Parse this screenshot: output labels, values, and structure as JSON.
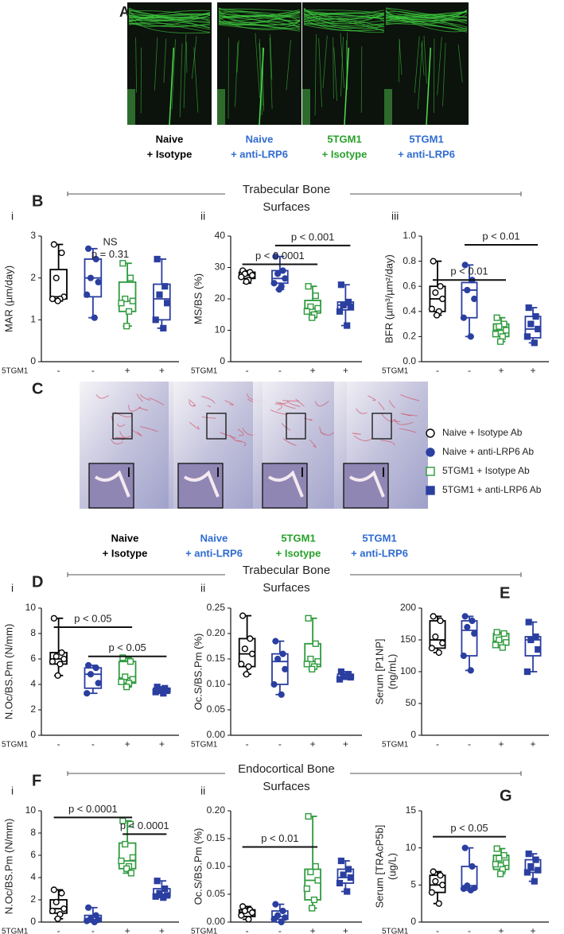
{
  "panel_a": {
    "letter": "A",
    "labels": [
      {
        "lines": [
          "Naive",
          "+ Isotype"
        ],
        "color": "#000000"
      },
      {
        "lines": [
          "Naive",
          "+ anti-LRP6"
        ],
        "color": "#2f6bd0"
      },
      {
        "lines": [
          "5TGM1",
          "+ Isotype"
        ],
        "color": "#28a02a"
      },
      {
        "lines": [
          "5TGM1",
          "+ anti-LRP6"
        ],
        "color": "#2f6bd0"
      }
    ]
  },
  "panel_c": {
    "letter": "C",
    "labels": [
      {
        "lines": [
          "Naive",
          "+ Isotype"
        ],
        "color": "#000000"
      },
      {
        "lines": [
          "Naive",
          "+ anti-LRP6"
        ],
        "color": "#2f6bd0"
      },
      {
        "lines": [
          "5TGM1",
          "+ Isotype"
        ],
        "color": "#28a02a"
      },
      {
        "lines": [
          "5TGM1",
          "+ anti-LRP6"
        ],
        "color": "#2f6bd0"
      }
    ],
    "legend": [
      "Naive + Isotype Ab",
      "Naive + anti-LRP6 Ab",
      "5TGM1 + Isotype Ab",
      "5TGM1 + anti-LRP6 Ab"
    ]
  },
  "sections": [
    {
      "letter": "B",
      "title": [
        "Trabecular Bone",
        "Surfaces"
      ]
    },
    {
      "letter": "D",
      "title": [
        "Trabecular Bone",
        "Surfaces"
      ]
    },
    {
      "letter": "F",
      "title": [
        "Endocortical Bone",
        "Surfaces"
      ]
    }
  ],
  "group_styles": [
    {
      "color": "#000000",
      "marker": "open-circle"
    },
    {
      "color": "#2b3fa0",
      "marker": "filled-circle"
    },
    {
      "color": "#2e9a3c",
      "marker": "open-square"
    },
    {
      "color": "#2b3fa0",
      "marker": "filled-square"
    }
  ],
  "chart_data": [
    {
      "type": "box",
      "sub": "i",
      "ylabel": [
        "MAR (µm/day)"
      ],
      "row_label": "5TGM1",
      "categories": [
        "-",
        "-",
        "+",
        "+"
      ],
      "ylim": [
        0,
        3
      ],
      "yticks": [
        0,
        1,
        2,
        3
      ],
      "notes": [
        {
          "text": "NS",
          "y": 2.85
        },
        {
          "text": "p = 0.31",
          "y": 2.55
        }
      ],
      "brackets": [],
      "series": [
        {
          "min": 1.45,
          "q1": 1.5,
          "median": 1.55,
          "q3": 2.2,
          "max": 2.8,
          "points": [
            2.8,
            2.6,
            2.0,
            1.55,
            1.5,
            1.5,
            1.45
          ]
        },
        {
          "min": 1.05,
          "q1": 1.55,
          "median": 2.0,
          "q3": 2.45,
          "max": 2.7,
          "points": [
            2.7,
            2.45,
            2.0,
            1.9,
            1.6,
            1.05
          ]
        },
        {
          "min": 0.85,
          "q1": 1.2,
          "median": 1.45,
          "q3": 1.9,
          "max": 2.35,
          "points": [
            2.35,
            2.0,
            1.5,
            1.45,
            1.4,
            1.2,
            0.85
          ]
        },
        {
          "min": 0.8,
          "q1": 1.0,
          "median": 1.5,
          "q3": 1.85,
          "max": 2.45,
          "points": [
            2.45,
            1.8,
            1.6,
            1.4,
            1.0,
            0.8
          ]
        }
      ]
    },
    {
      "type": "box",
      "sub": "ii",
      "ylabel": [
        "MS/BS (%)"
      ],
      "row_label": "5TGM1",
      "categories": [
        "-",
        "-",
        "+",
        "+"
      ],
      "ylim": [
        0,
        40
      ],
      "yticks": [
        0,
        10,
        20,
        30,
        40
      ],
      "notes": [],
      "brackets": [
        {
          "text": "p < 0.0001",
          "y": 31,
          "from": 0,
          "to": 2
        },
        {
          "text": "p < 0.001",
          "y": 37,
          "from": 1,
          "to": 3
        }
      ],
      "series": [
        {
          "min": 25,
          "q1": 26.5,
          "median": 27.5,
          "q3": 28.5,
          "max": 29,
          "points": [
            29,
            28.5,
            28,
            27.5,
            27,
            26,
            25.5
          ]
        },
        {
          "min": 23,
          "q1": 25,
          "median": 26.5,
          "q3": 29,
          "max": 33.5,
          "points": [
            33.5,
            29,
            28,
            26.5,
            25,
            24,
            23
          ]
        },
        {
          "min": 14,
          "q1": 15.5,
          "median": 17,
          "q3": 19.5,
          "max": 24,
          "points": [
            24,
            21,
            17.5,
            17,
            16,
            15,
            14
          ]
        },
        {
          "min": 11.5,
          "q1": 16.5,
          "median": 18,
          "q3": 19,
          "max": 24.5,
          "points": [
            24.5,
            19,
            18,
            17.5,
            16,
            11.5
          ]
        }
      ]
    },
    {
      "type": "box",
      "sub": "iii",
      "ylabel": [
        "BFR (µm³/µm²/day)"
      ],
      "row_label": "5TGM1",
      "categories": [
        "-",
        "-",
        "+",
        "+"
      ],
      "ylim": [
        0,
        1
      ],
      "yticks": [
        {
          "value": 0,
          "label": "0.0"
        },
        0.2,
        0.4,
        0.6,
        0.8,
        {
          "value": 1,
          "label": "1.0"
        }
      ],
      "notes": [],
      "brackets": [
        {
          "text": "p < 0.01",
          "y": 0.65,
          "from": 0,
          "to": 2
        },
        {
          "text": "p < 0.01",
          "y": 0.93,
          "from": 1,
          "to": 3
        }
      ],
      "series": [
        {
          "min": 0.37,
          "q1": 0.4,
          "median": 0.5,
          "q3": 0.6,
          "max": 0.8,
          "points": [
            0.8,
            0.6,
            0.55,
            0.5,
            0.42,
            0.4,
            0.37
          ]
        },
        {
          "min": 0.2,
          "q1": 0.35,
          "median": 0.57,
          "q3": 0.63,
          "max": 0.77,
          "points": [
            0.77,
            0.65,
            0.57,
            0.5,
            0.35,
            0.2
          ]
        },
        {
          "min": 0.16,
          "q1": 0.2,
          "median": 0.25,
          "q3": 0.3,
          "max": 0.35,
          "points": [
            0.35,
            0.3,
            0.28,
            0.25,
            0.22,
            0.2,
            0.16
          ]
        },
        {
          "min": 0.15,
          "q1": 0.19,
          "median": 0.26,
          "q3": 0.36,
          "max": 0.43,
          "points": [
            0.43,
            0.36,
            0.3,
            0.26,
            0.2,
            0.15
          ]
        }
      ]
    },
    {
      "type": "box",
      "sub": "i",
      "ylabel": [
        "N.Oc/BS.Pm (N/mm)"
      ],
      "row_label": "5TGM1",
      "categories": [
        "-",
        "-",
        "+",
        "+"
      ],
      "ylim": [
        0,
        10
      ],
      "yticks": [
        0,
        2,
        4,
        6,
        8,
        10
      ],
      "notes": [],
      "brackets": [
        {
          "text": "p < 0.05",
          "y": 8.5,
          "from": 0,
          "to": 2
        },
        {
          "text": "p < 0.05",
          "y": 6.2,
          "from": 1,
          "to": 3
        }
      ],
      "series": [
        {
          "min": 4.7,
          "q1": 5.6,
          "median": 6.0,
          "q3": 6.5,
          "max": 9.2,
          "points": [
            9.2,
            6.5,
            6.2,
            6.0,
            5.8,
            5.6,
            4.7
          ]
        },
        {
          "min": 3.3,
          "q1": 3.7,
          "median": 4.8,
          "q3": 5.3,
          "max": 5.5,
          "points": [
            5.5,
            5.3,
            4.8,
            4.1,
            3.3
          ]
        },
        {
          "min": 3.8,
          "q1": 4.1,
          "median": 4.5,
          "q3": 5.8,
          "max": 6.1,
          "points": [
            6.1,
            5.8,
            4.6,
            4.4,
            4.2,
            4.1,
            3.8
          ]
        },
        {
          "min": 3.3,
          "q1": 3.4,
          "median": 3.6,
          "q3": 3.7,
          "max": 3.8,
          "points": [
            3.8,
            3.7,
            3.6,
            3.5,
            3.4,
            3.3
          ]
        }
      ]
    },
    {
      "type": "box",
      "sub": "ii",
      "ylabel": [
        "Oc.S/BS.Pm (%)"
      ],
      "row_label": "5TGM1",
      "categories": [
        "-",
        "-",
        "+",
        "+"
      ],
      "ylim": [
        0,
        0.25
      ],
      "yticks": [
        {
          "value": 0,
          "label": "0.00"
        },
        0.05,
        {
          "value": 0.1,
          "label": "0.10"
        },
        0.15,
        {
          "value": 0.2,
          "label": "0.20"
        },
        0.25
      ],
      "notes": [],
      "brackets": [],
      "series": [
        {
          "min": 0.12,
          "q1": 0.135,
          "median": 0.16,
          "q3": 0.19,
          "max": 0.235,
          "points": [
            0.235,
            0.19,
            0.17,
            0.16,
            0.14,
            0.135,
            0.12
          ]
        },
        {
          "min": 0.08,
          "q1": 0.1,
          "median": 0.145,
          "q3": 0.16,
          "max": 0.185,
          "points": [
            0.185,
            0.16,
            0.15,
            0.13,
            0.1,
            0.08
          ]
        },
        {
          "min": 0.13,
          "q1": 0.135,
          "median": 0.145,
          "q3": 0.18,
          "max": 0.23,
          "points": [
            0.23,
            0.18,
            0.15,
            0.145,
            0.14,
            0.135,
            0.13
          ]
        },
        {
          "min": 0.11,
          "q1": 0.112,
          "median": 0.115,
          "q3": 0.12,
          "max": 0.125,
          "points": [
            0.125,
            0.12,
            0.116,
            0.114,
            0.11
          ]
        }
      ]
    },
    {
      "type": "box",
      "letter": "E",
      "ylabel": [
        "Serum [P1NP]",
        "(ng/mL)"
      ],
      "row_label": "5TGM1",
      "categories": [
        "-",
        "-",
        "+",
        "+"
      ],
      "ylim": [
        0,
        200
      ],
      "yticks": [
        0,
        50,
        100,
        150,
        200
      ],
      "notes": [],
      "brackets": [],
      "series": [
        {
          "min": 130,
          "q1": 137,
          "median": 150,
          "q3": 180,
          "max": 187,
          "points": [
            187,
            180,
            155,
            145,
            137,
            130
          ]
        },
        {
          "min": 102,
          "q1": 125,
          "median": 165,
          "q3": 180,
          "max": 187,
          "points": [
            187,
            180,
            170,
            160,
            125,
            102
          ]
        },
        {
          "min": 138,
          "q1": 142,
          "median": 148,
          "q3": 160,
          "max": 162,
          "points": [
            162,
            160,
            150,
            146,
            142,
            138
          ]
        },
        {
          "min": 100,
          "q1": 125,
          "median": 150,
          "q3": 155,
          "max": 178,
          "points": [
            178,
            155,
            150,
            135,
            100
          ]
        }
      ]
    },
    {
      "type": "box",
      "sub": "i",
      "ylabel": [
        "N.Oc/BS.Pm (N/mm)"
      ],
      "row_label": "5TGM1",
      "categories": [
        "-",
        "-",
        "+",
        "+"
      ],
      "ylim": [
        0,
        10
      ],
      "yticks": [
        0,
        2,
        4,
        6,
        8,
        10
      ],
      "notes": [],
      "brackets": [
        {
          "text": "p < 0.0001",
          "y": 9.4,
          "from": 0,
          "to": 2
        },
        {
          "text": "p < 0.0001",
          "y": 7.9,
          "from": 2,
          "to": 3
        }
      ],
      "series": [
        {
          "min": 0.3,
          "q1": 0.8,
          "median": 1.2,
          "q3": 2.0,
          "max": 2.9,
          "points": [
            2.9,
            2.6,
            1.8,
            1.2,
            1.0,
            0.7,
            0.3
          ]
        },
        {
          "min": 0,
          "q1": 0.1,
          "median": 0.2,
          "q3": 0.6,
          "max": 1.3,
          "points": [
            1.3,
            0.6,
            0.3,
            0.2,
            0.1,
            0
          ]
        },
        {
          "min": 4.4,
          "q1": 4.8,
          "median": 5.5,
          "q3": 7.1,
          "max": 9.1,
          "points": [
            9.1,
            8.8,
            7.0,
            5.8,
            5.5,
            5.0,
            4.8,
            4.4
          ]
        },
        {
          "min": 2.2,
          "q1": 2.3,
          "median": 2.5,
          "q3": 3.0,
          "max": 3.7,
          "points": [
            3.7,
            3.0,
            2.6,
            2.4,
            2.3,
            2.2
          ]
        }
      ]
    },
    {
      "type": "box",
      "sub": "ii",
      "ylabel": [
        "Oc.S/BS.Pm (%)"
      ],
      "row_label": "5TGM1",
      "categories": [
        "-",
        "-",
        "+",
        "+"
      ],
      "ylim": [
        0,
        0.2
      ],
      "yticks": [
        {
          "value": 0,
          "label": "0.00"
        },
        0.05,
        {
          "value": 0.1,
          "label": "0.10"
        },
        0.15,
        {
          "value": 0.2,
          "label": "0.20"
        }
      ],
      "notes": [],
      "brackets": [
        {
          "text": "p < 0.01",
          "y": 0.135,
          "from": 0,
          "to": 2
        }
      ],
      "series": [
        {
          "min": 0.005,
          "q1": 0.01,
          "median": 0.018,
          "q3": 0.022,
          "max": 0.028,
          "points": [
            0.028,
            0.022,
            0.02,
            0.017,
            0.012,
            0.005
          ]
        },
        {
          "min": 0,
          "q1": 0.005,
          "median": 0.01,
          "q3": 0.02,
          "max": 0.032,
          "points": [
            0.032,
            0.02,
            0.012,
            0.008,
            0.005,
            0
          ]
        },
        {
          "min": 0.025,
          "q1": 0.04,
          "median": 0.075,
          "q3": 0.095,
          "max": 0.19,
          "points": [
            0.19,
            0.1,
            0.09,
            0.075,
            0.06,
            0.04,
            0.025
          ]
        },
        {
          "min": 0.055,
          "q1": 0.07,
          "median": 0.08,
          "q3": 0.095,
          "max": 0.11,
          "points": [
            0.11,
            0.095,
            0.085,
            0.08,
            0.07,
            0.055
          ]
        }
      ]
    },
    {
      "type": "box",
      "letter": "G",
      "ylabel": [
        "Serum [TRAcP5b]",
        "(ug/L)"
      ],
      "row_label": "5TGM1",
      "categories": [
        "-",
        "-",
        "+",
        "+"
      ],
      "ylim": [
        0,
        15
      ],
      "yticks": [
        0,
        5,
        10,
        15
      ],
      "notes": [],
      "brackets": [
        {
          "text": "p < 0.05",
          "y": 11.5,
          "from": 0,
          "to": 2
        }
      ],
      "series": [
        {
          "min": 2.5,
          "q1": 4,
          "median": 5,
          "q3": 6.3,
          "max": 6.8,
          "points": [
            6.8,
            6.3,
            5.5,
            5.0,
            4.0,
            2.5
          ]
        },
        {
          "min": 4.3,
          "q1": 4.5,
          "median": 4.9,
          "q3": 7.5,
          "max": 10,
          "points": [
            10,
            7.5,
            4.9,
            4.6,
            4.5,
            4.3
          ]
        },
        {
          "min": 6.5,
          "q1": 7.1,
          "median": 8,
          "q3": 9,
          "max": 9.9,
          "points": [
            9.9,
            9.0,
            8.6,
            8.0,
            7.8,
            7.1,
            6.5
          ]
        },
        {
          "min": 5.5,
          "q1": 6.7,
          "median": 7,
          "q3": 8.4,
          "max": 9.2,
          "points": [
            9.2,
            8.4,
            7.5,
            7.0,
            6.7,
            5.5
          ]
        }
      ]
    }
  ]
}
